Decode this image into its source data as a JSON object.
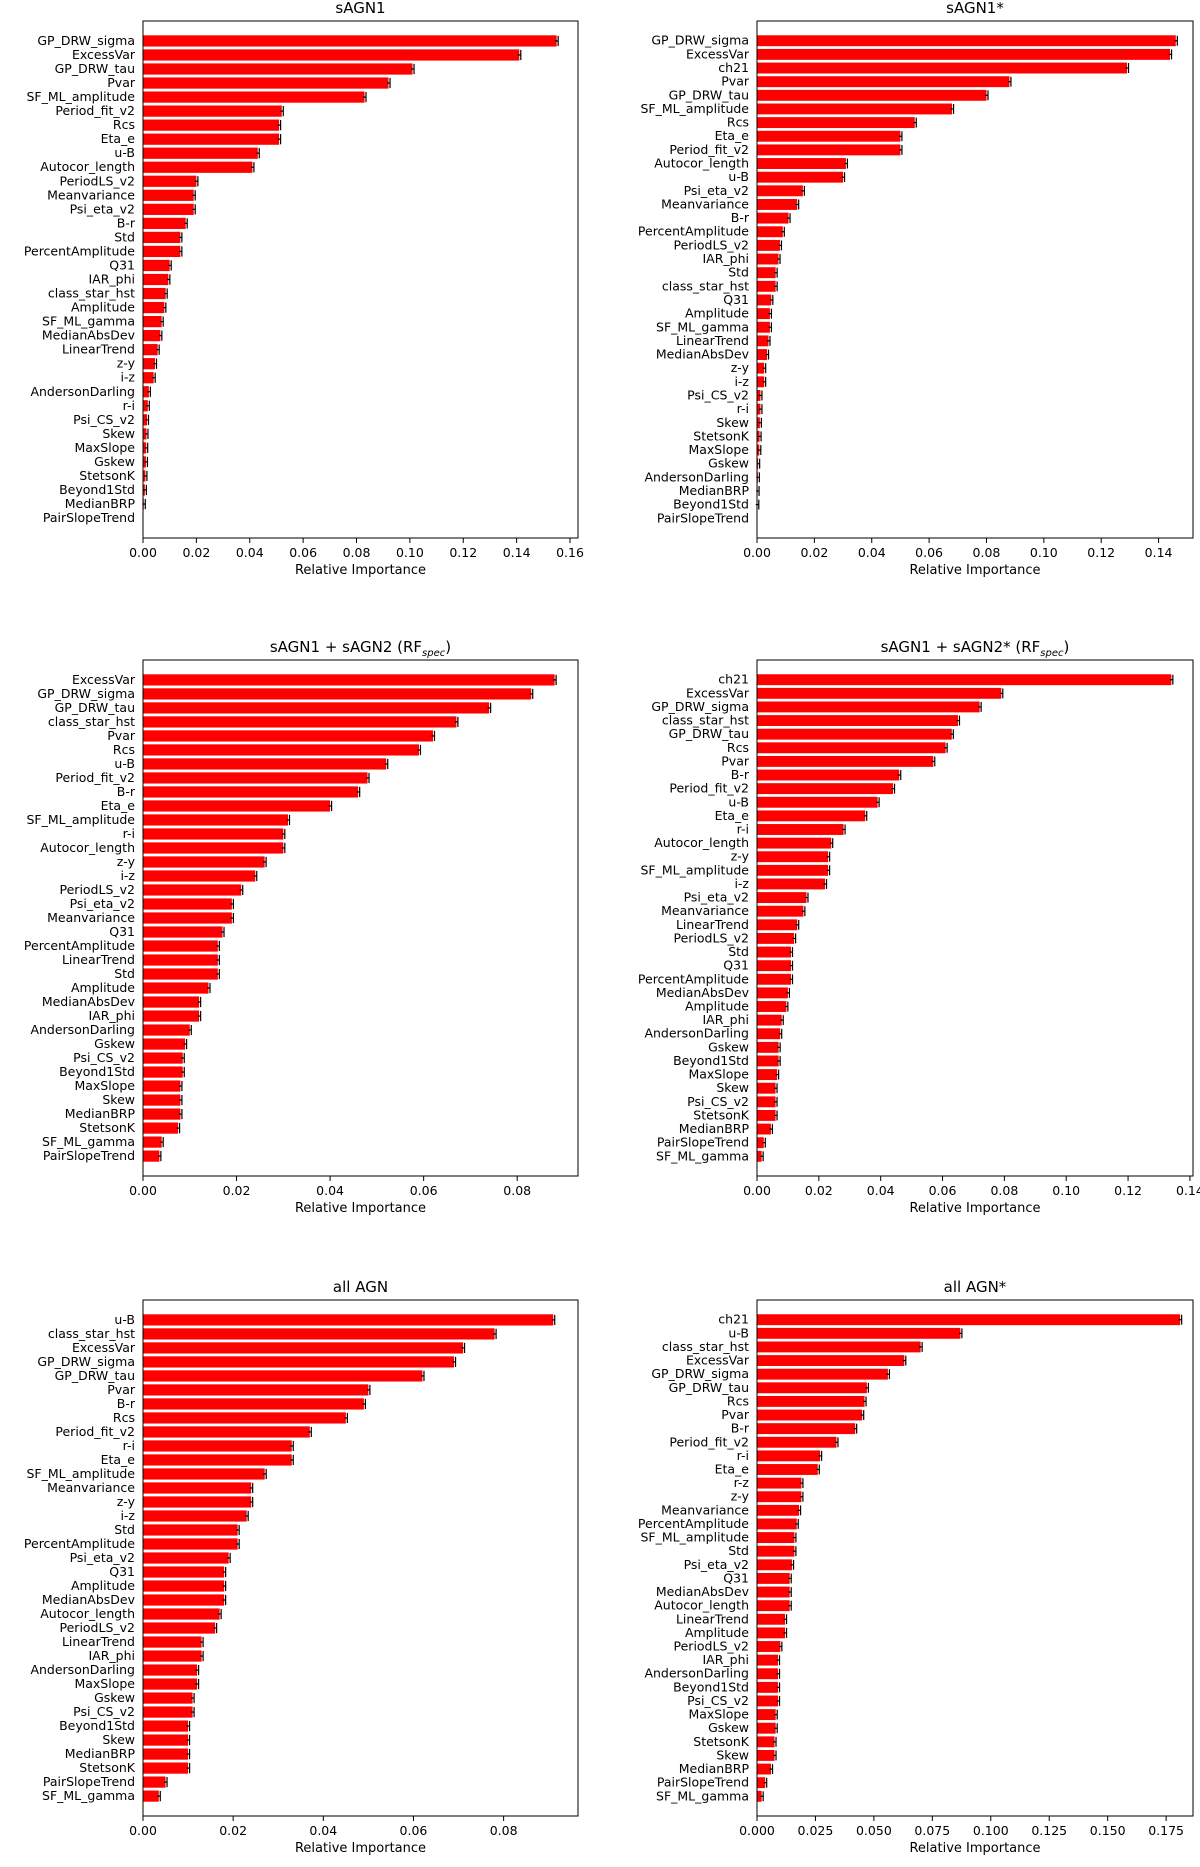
{
  "chart_data": [
    {
      "type": "bar",
      "orientation": "horizontal",
      "title": "sAGN1",
      "xlabel": "Relative Importance",
      "xlim": [
        0,
        0.163
      ],
      "xticks": [
        0.0,
        0.02,
        0.04,
        0.06,
        0.08,
        0.1,
        0.12,
        0.14,
        0.16
      ],
      "xtick_labels": [
        "0.00",
        "0.02",
        "0.04",
        "0.06",
        "0.08",
        "0.10",
        "0.12",
        "0.14",
        "0.16"
      ],
      "bar_color": "#ff0000",
      "error_color": "#000000",
      "categories": [
        "GP_DRW_sigma",
        "ExcessVar",
        "GP_DRW_tau",
        "Pvar",
        "SF_ML_amplitude",
        "Period_fit_v2",
        "Rcs",
        "Eta_e",
        "u-B",
        "Autocor_length",
        "PeriodLS_v2",
        "Meanvariance",
        "Psi_eta_v2",
        "B-r",
        "Std",
        "PercentAmplitude",
        "Q31",
        "IAR_phi",
        "class_star_hst",
        "Amplitude",
        "SF_ML_gamma",
        "MedianAbsDev",
        "LinearTrend",
        "z-y",
        "i-z",
        "AndersonDarling",
        "r-i",
        "Psi_CS_v2",
        "Skew",
        "MaxSlope",
        "Gskew",
        "StetsonK",
        "Beyond1Std",
        "MedianBRP",
        "PairSlopeTrend"
      ],
      "values": [
        0.155,
        0.141,
        0.101,
        0.092,
        0.083,
        0.052,
        0.051,
        0.051,
        0.043,
        0.041,
        0.02,
        0.019,
        0.019,
        0.016,
        0.014,
        0.014,
        0.01,
        0.0095,
        0.0085,
        0.008,
        0.007,
        0.0065,
        0.0055,
        0.0045,
        0.004,
        0.0022,
        0.0018,
        0.0015,
        0.0013,
        0.0012,
        0.0011,
        0.0009,
        0.0007,
        0.0003,
        0.0
      ]
    },
    {
      "type": "bar",
      "orientation": "horizontal",
      "title": "sAGN1*",
      "xlabel": "Relative Importance",
      "xlim": [
        0,
        0.152
      ],
      "xticks": [
        0.0,
        0.02,
        0.04,
        0.06,
        0.08,
        0.1,
        0.12,
        0.14
      ],
      "xtick_labels": [
        "0.00",
        "0.02",
        "0.04",
        "0.06",
        "0.08",
        "0.10",
        "0.12",
        "0.14"
      ],
      "bar_color": "#ff0000",
      "error_color": "#000000",
      "categories": [
        "GP_DRW_sigma",
        "ExcessVar",
        "ch21",
        "Pvar",
        "GP_DRW_tau",
        "SF_ML_amplitude",
        "Rcs",
        "Eta_e",
        "Period_fit_v2",
        "Autocor_length",
        "u-B",
        "Psi_eta_v2",
        "Meanvariance",
        "B-r",
        "PercentAmplitude",
        "PeriodLS_v2",
        "IAR_phi",
        "Std",
        "class_star_hst",
        "Q31",
        "Amplitude",
        "SF_ML_gamma",
        "LinearTrend",
        "MedianAbsDev",
        "z-y",
        "i-z",
        "Psi_CS_v2",
        "r-i",
        "Skew",
        "StetsonK",
        "MaxSlope",
        "Gskew",
        "AndersonDarling",
        "MedianBRP",
        "Beyond1Std",
        "PairSlopeTrend"
      ],
      "values": [
        0.146,
        0.144,
        0.129,
        0.088,
        0.08,
        0.068,
        0.055,
        0.05,
        0.05,
        0.031,
        0.03,
        0.016,
        0.014,
        0.011,
        0.009,
        0.008,
        0.0075,
        0.0065,
        0.0065,
        0.005,
        0.0045,
        0.0045,
        0.004,
        0.0035,
        0.0025,
        0.0025,
        0.0012,
        0.0012,
        0.001,
        0.0009,
        0.0008,
        0.0004,
        0.0003,
        0.0002,
        0.0001,
        0.0
      ]
    },
    {
      "type": "bar",
      "orientation": "horizontal",
      "title": "sAGN1 + sAGN2 (RF",
      "title_subscript": "spec",
      "title_suffix": ")",
      "xlabel": "Relative Importance",
      "xlim": [
        0,
        0.093
      ],
      "xticks": [
        0.0,
        0.02,
        0.04,
        0.06,
        0.08
      ],
      "xtick_labels": [
        "0.00",
        "0.02",
        "0.04",
        "0.06",
        "0.08"
      ],
      "bar_color": "#ff0000",
      "error_color": "#000000",
      "categories": [
        "ExcessVar",
        "GP_DRW_sigma",
        "GP_DRW_tau",
        "class_star_hst",
        "Pvar",
        "Rcs",
        "u-B",
        "Period_fit_v2",
        "B-r",
        "Eta_e",
        "SF_ML_amplitude",
        "r-i",
        "Autocor_length",
        "z-y",
        "i-z",
        "PeriodLS_v2",
        "Psi_eta_v2",
        "Meanvariance",
        "Q31",
        "PercentAmplitude",
        "LinearTrend",
        "Std",
        "Amplitude",
        "MedianAbsDev",
        "IAR_phi",
        "AndersonDarling",
        "Gskew",
        "Psi_CS_v2",
        "Beyond1Std",
        "MaxSlope",
        "Skew",
        "MedianBRP",
        "StetsonK",
        "SF_ML_gamma",
        "PairSlopeTrend"
      ],
      "values": [
        0.088,
        0.083,
        0.074,
        0.067,
        0.062,
        0.059,
        0.052,
        0.048,
        0.046,
        0.04,
        0.031,
        0.03,
        0.03,
        0.026,
        0.024,
        0.021,
        0.019,
        0.019,
        0.017,
        0.016,
        0.016,
        0.016,
        0.014,
        0.012,
        0.012,
        0.01,
        0.009,
        0.0085,
        0.0085,
        0.008,
        0.008,
        0.008,
        0.0075,
        0.004,
        0.0035
      ]
    },
    {
      "type": "bar",
      "orientation": "horizontal",
      "title": "sAGN1 + sAGN2* (RF",
      "title_subscript": "spec",
      "title_suffix": ")",
      "xlabel": "Relative Importance",
      "xlim": [
        0,
        0.141
      ],
      "xticks": [
        0.0,
        0.02,
        0.04,
        0.06,
        0.08,
        0.1,
        0.12,
        0.14
      ],
      "xtick_labels": [
        "0.00",
        "0.02",
        "0.04",
        "0.06",
        "0.08",
        "0.10",
        "0.12",
        "0.14"
      ],
      "bar_color": "#ff0000",
      "error_color": "#000000",
      "categories": [
        "ch21",
        "ExcessVar",
        "GP_DRW_sigma",
        "class_star_hst",
        "GP_DRW_tau",
        "Rcs",
        "Pvar",
        "B-r",
        "Period_fit_v2",
        "u-B",
        "Eta_e",
        "r-i",
        "Autocor_length",
        "z-y",
        "SF_ML_amplitude",
        "i-z",
        "Psi_eta_v2",
        "Meanvariance",
        "LinearTrend",
        "PeriodLS_v2",
        "Std",
        "Q31",
        "PercentAmplitude",
        "MedianAbsDev",
        "Amplitude",
        "IAR_phi",
        "AndersonDarling",
        "Gskew",
        "Beyond1Std",
        "MaxSlope",
        "Skew",
        "Psi_CS_v2",
        "StetsonK",
        "MedianBRP",
        "PairSlopeTrend",
        "SF_ML_gamma"
      ],
      "values": [
        0.134,
        0.079,
        0.072,
        0.065,
        0.063,
        0.061,
        0.057,
        0.046,
        0.044,
        0.039,
        0.035,
        0.028,
        0.024,
        0.023,
        0.023,
        0.022,
        0.016,
        0.015,
        0.013,
        0.012,
        0.011,
        0.011,
        0.011,
        0.01,
        0.0095,
        0.008,
        0.0075,
        0.007,
        0.007,
        0.0065,
        0.006,
        0.006,
        0.006,
        0.0045,
        0.0022,
        0.0015
      ]
    },
    {
      "type": "bar",
      "orientation": "horizontal",
      "title": "all AGN",
      "xlabel": "Relative Importance",
      "xlim": [
        0,
        0.0965
      ],
      "xticks": [
        0.0,
        0.02,
        0.04,
        0.06,
        0.08
      ],
      "xtick_labels": [
        "0.00",
        "0.02",
        "0.04",
        "0.06",
        "0.08"
      ],
      "bar_color": "#ff0000",
      "error_color": "#000000",
      "categories": [
        "u-B",
        "class_star_hst",
        "ExcessVar",
        "GP_DRW_sigma",
        "GP_DRW_tau",
        "Pvar",
        "B-r",
        "Rcs",
        "Period_fit_v2",
        "r-i",
        "Eta_e",
        "SF_ML_amplitude",
        "Meanvariance",
        "z-y",
        "i-z",
        "Std",
        "PercentAmplitude",
        "Psi_eta_v2",
        "Q31",
        "Amplitude",
        "MedianAbsDev",
        "Autocor_length",
        "PeriodLS_v2",
        "LinearTrend",
        "IAR_phi",
        "AndersonDarling",
        "MaxSlope",
        "Gskew",
        "Psi_CS_v2",
        "Beyond1Std",
        "Skew",
        "MedianBRP",
        "StetsonK",
        "PairSlopeTrend",
        "SF_ML_gamma"
      ],
      "values": [
        0.091,
        0.078,
        0.071,
        0.069,
        0.062,
        0.05,
        0.049,
        0.045,
        0.037,
        0.033,
        0.033,
        0.027,
        0.024,
        0.024,
        0.023,
        0.021,
        0.021,
        0.019,
        0.018,
        0.018,
        0.018,
        0.017,
        0.016,
        0.013,
        0.013,
        0.012,
        0.012,
        0.011,
        0.011,
        0.01,
        0.01,
        0.01,
        0.01,
        0.005,
        0.0035
      ]
    },
    {
      "type": "bar",
      "orientation": "horizontal",
      "title": "all AGN*",
      "xlabel": "Relative Importance",
      "xlim": [
        0,
        0.1865
      ],
      "xticks": [
        0.0,
        0.025,
        0.05,
        0.075,
        0.1,
        0.125,
        0.15,
        0.175
      ],
      "xtick_labels": [
        "0.000",
        "0.025",
        "0.050",
        "0.075",
        "0.100",
        "0.125",
        "0.150",
        "0.175"
      ],
      "bar_color": "#ff0000",
      "error_color": "#000000",
      "categories": [
        "ch21",
        "u-B",
        "class_star_hst",
        "ExcessVar",
        "GP_DRW_sigma",
        "GP_DRW_tau",
        "Rcs",
        "Pvar",
        "B-r",
        "Period_fit_v2",
        "r-i",
        "Eta_e",
        "r-z",
        "z-y",
        "Meanvariance",
        "PercentAmplitude",
        "SF_ML_amplitude",
        "Std",
        "Psi_eta_v2",
        "Q31",
        "MedianAbsDev",
        "Autocor_length",
        "LinearTrend",
        "Amplitude",
        "PeriodLS_v2",
        "IAR_phi",
        "AndersonDarling",
        "Beyond1Std",
        "Psi_CS_v2",
        "MaxSlope",
        "Gskew",
        "StetsonK",
        "Skew",
        "MedianBRP",
        "PairSlopeTrend",
        "SF_ML_gamma"
      ],
      "values": [
        0.181,
        0.087,
        0.07,
        0.063,
        0.056,
        0.047,
        0.046,
        0.045,
        0.042,
        0.034,
        0.027,
        0.026,
        0.019,
        0.019,
        0.018,
        0.017,
        0.016,
        0.016,
        0.015,
        0.014,
        0.014,
        0.014,
        0.012,
        0.012,
        0.01,
        0.009,
        0.009,
        0.009,
        0.009,
        0.008,
        0.008,
        0.0075,
        0.0075,
        0.006,
        0.0035,
        0.002
      ]
    }
  ]
}
